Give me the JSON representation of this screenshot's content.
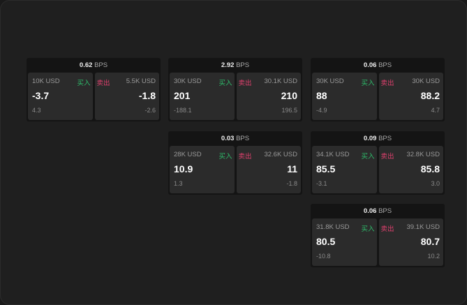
{
  "labels": {
    "unit": "BPS",
    "buy": "买入",
    "sell": "卖出"
  },
  "colors": {
    "buy": "#2ebd6b",
    "sell": "#e0406e"
  },
  "cards": [
    {
      "spread": "0.62",
      "buy": {
        "size": "10K USD",
        "price": "-3.7",
        "change": "4.3"
      },
      "sell": {
        "size": "5.5K USD",
        "price": "-1.8",
        "change": "-2.6"
      }
    },
    {
      "spread": "2.92",
      "buy": {
        "size": "30K USD",
        "price": "201",
        "change": "-188.1"
      },
      "sell": {
        "size": "30.1K USD",
        "price": "210",
        "change": "196.5"
      }
    },
    {
      "spread": "0.06",
      "buy": {
        "size": "30K USD",
        "price": "88",
        "change": "-4.9"
      },
      "sell": {
        "size": "30K USD",
        "price": "88.2",
        "change": "4.7"
      }
    },
    {
      "spread": "0.03",
      "buy": {
        "size": "28K USD",
        "price": "10.9",
        "change": "1.3"
      },
      "sell": {
        "size": "32.6K USD",
        "price": "11",
        "change": "-1.8"
      }
    },
    {
      "spread": "0.09",
      "buy": {
        "size": "34.1K USD",
        "price": "85.5",
        "change": "-3.1"
      },
      "sell": {
        "size": "32.8K USD",
        "price": "85.8",
        "change": "3.0"
      }
    },
    {
      "spread": "0.06",
      "buy": {
        "size": "31.8K USD",
        "price": "80.5",
        "change": "-10.8"
      },
      "sell": {
        "size": "39.1K USD",
        "price": "80.7",
        "change": "10.2"
      }
    }
  ]
}
